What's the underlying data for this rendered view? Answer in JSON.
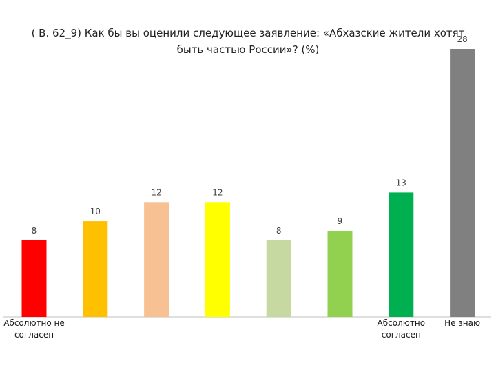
{
  "chart_data": {
    "type": "bar",
    "title": "( В. 62_9)  Как бы вы оценили следующее заявление: «Абхазские жители хотят быть частью России»? (%)",
    "categories": [
      "Абсолютно не согласен",
      "",
      "",
      "",
      "",
      "",
      "Абсолютно согласен",
      "Не знаю"
    ],
    "category_lines": [
      [
        "Абсолютно не",
        "согласен"
      ],
      [],
      [],
      [],
      [],
      [],
      [
        "Абсолютно",
        "согласен"
      ],
      [
        "Не знаю"
      ]
    ],
    "values": [
      8,
      10,
      12,
      12,
      8,
      9,
      13,
      28
    ],
    "colors": [
      "#ff0000",
      "#ffc000",
      "#f8c193",
      "#ffff00",
      "#c6d9a0",
      "#92d050",
      "#00b050",
      "#808080"
    ],
    "ylim": [
      0,
      28
    ],
    "xlabel": "",
    "ylabel": "",
    "grid": false,
    "legend": "none"
  }
}
